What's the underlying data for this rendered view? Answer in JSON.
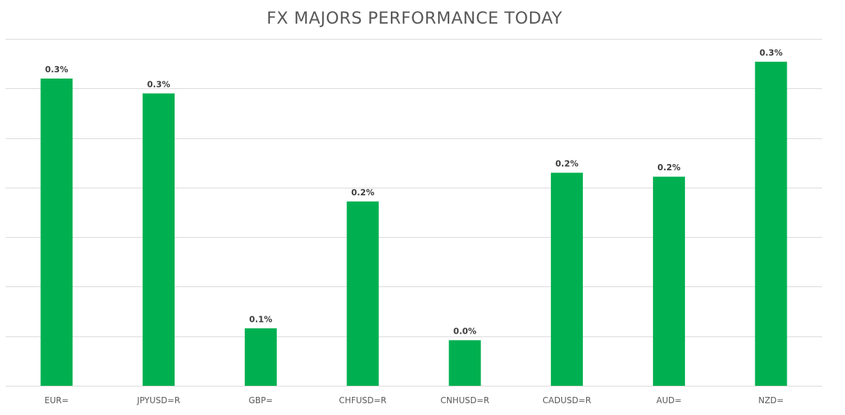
{
  "chart_data": {
    "type": "bar",
    "title": "FX MAJORS PERFORMANCE TODAY",
    "xlabel": "",
    "ylabel": "",
    "categories": [
      "EUR=",
      "JPYUSD=R",
      "GBP=",
      "CHFUSD=R",
      "CNHUSD=R",
      "CADUSD=R",
      "AUD=",
      "NZD="
    ],
    "values": [
      0.31,
      0.295,
      0.058,
      0.186,
      0.046,
      0.215,
      0.211,
      0.327
    ],
    "data_labels": [
      "0.3%",
      "0.3%",
      "0.1%",
      "0.2%",
      "0.0%",
      "0.2%",
      "0.2%",
      "0.3%"
    ],
    "ylim": [
      0,
      0.35
    ],
    "gridlines": true,
    "y_tick_labels_visible": false,
    "legend": "none",
    "colors": {
      "bar": "#00b050",
      "grid": "#d9d9d9",
      "title": "#595959",
      "label": "#404040"
    }
  }
}
